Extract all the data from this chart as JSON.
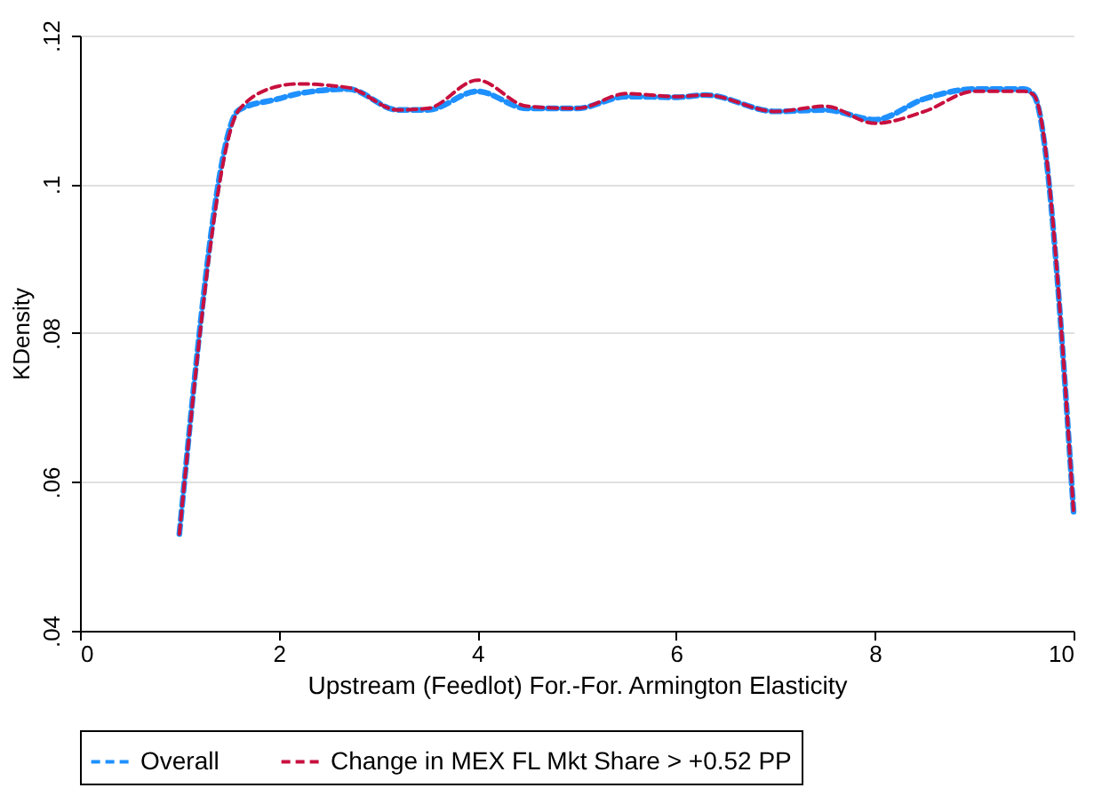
{
  "chart_data": {
    "type": "line",
    "xlabel": "Upstream (Feedlot) For.-For. Armington Elasticity",
    "ylabel": "KDensity",
    "xlim": [
      0,
      10
    ],
    "xticks": [
      0,
      2,
      4,
      6,
      8,
      10
    ],
    "ylim": [
      0.04,
      0.12
    ],
    "yticks": [
      {
        "value": 0.04,
        "label": ".04"
      },
      {
        "value": 0.06,
        "label": ".06"
      },
      {
        "value": 0.08,
        "label": ".08"
      },
      {
        "value": 0.1,
        "label": ".1"
      },
      {
        "value": 0.12,
        "label": ".12"
      }
    ],
    "grid": "y",
    "legend": "bottom",
    "marker": "none",
    "line_style": "dashed",
    "x": [
      1.0,
      1.6,
      2.0,
      2.2,
      2.7,
      3.2,
      3.5,
      4.0,
      4.5,
      5.0,
      5.5,
      6.0,
      6.3,
      7.0,
      7.5,
      8.0,
      8.5,
      9.0,
      9.5,
      9.6,
      10.0
    ],
    "series": [
      {
        "name": "Overall",
        "color": "#1e90ff",
        "values": [
          0.053,
          0.11,
          0.1115,
          0.1122,
          0.1128,
          0.11,
          0.11,
          0.1125,
          0.1102,
          0.1102,
          0.1118,
          0.1117,
          0.112,
          0.1098,
          0.11,
          0.1087,
          0.1115,
          0.1128,
          0.1128,
          0.112,
          0.056
        ]
      },
      {
        "name": "Change in MEX FL Mkt Share > +0.52 PP",
        "color": "#c8103e",
        "values": [
          0.053,
          0.11,
          0.1132,
          0.1135,
          0.113,
          0.11,
          0.1102,
          0.114,
          0.1105,
          0.1102,
          0.1122,
          0.1118,
          0.112,
          0.1098,
          0.1105,
          0.1082,
          0.1098,
          0.1125,
          0.1125,
          0.112,
          0.056
        ]
      }
    ]
  }
}
